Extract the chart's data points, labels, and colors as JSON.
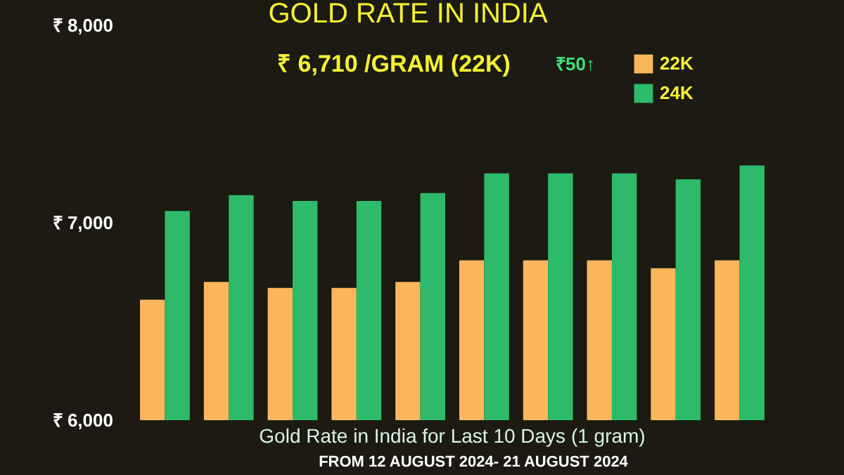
{
  "chart_data": {
    "type": "bar",
    "title": "GOLD RATE IN INDIA",
    "subtitle": "₹ 6,710 /GRAM (22K)",
    "categories": [
      null,
      null,
      null,
      null,
      null,
      null,
      null,
      null,
      null,
      null
    ],
    "series": [
      {
        "name": "22K",
        "color": "#fbb65b",
        "values": [
          6610,
          6700,
          6670,
          6670,
          6700,
          6810,
          6810,
          6810,
          6770,
          6810
        ]
      },
      {
        "name": "24K",
        "color": "#2dbb6b",
        "values": [
          7060,
          7140,
          7110,
          7110,
          7150,
          7250,
          7250,
          7250,
          7220,
          7290
        ]
      }
    ],
    "ylim": [
      6000,
      8000
    ],
    "yticks": [
      {
        "value": 6000,
        "label": "₹ 6,000"
      },
      {
        "value": 7000,
        "label": "₹ 7,000"
      },
      {
        "value": 8000,
        "label": "₹ 8,000"
      }
    ],
    "grid": false,
    "legend": "top right",
    "tick_labels": "y",
    "annotations": [
      "₹50↑",
      "Gold Rate in India for Last 10 Days (1 gram)",
      "FROM 12 AUGUST 2024- 21 AUGUST 2024"
    ]
  }
}
